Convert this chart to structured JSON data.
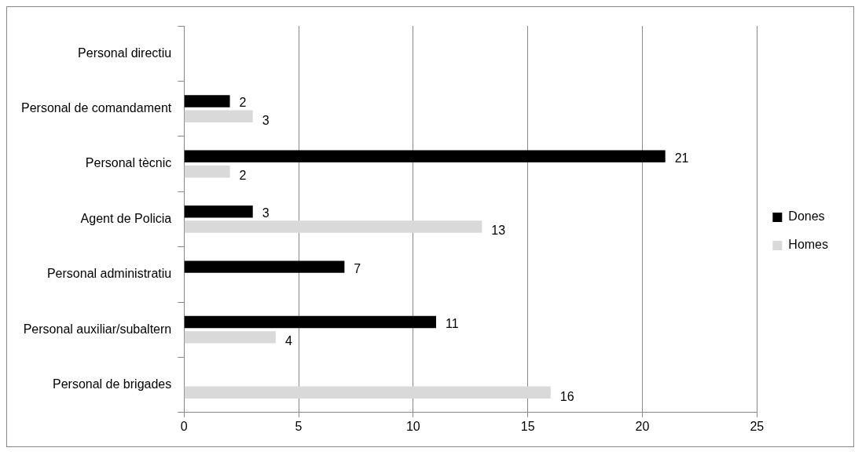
{
  "chart_data": {
    "type": "bar",
    "orientation": "horizontal",
    "categories": [
      "Personal directiu",
      "Personal de comandament",
      "Personal tècnic",
      "Agent de Policia",
      "Personal administratiu",
      "Personal auxiliar/subaltern",
      "Personal de brigades"
    ],
    "series": [
      {
        "name": "Dones",
        "color": "#000000",
        "values": [
          null,
          2,
          21,
          3,
          7,
          11,
          null
        ]
      },
      {
        "name": "Homes",
        "color": "#d9d9d9",
        "values": [
          null,
          3,
          2,
          13,
          null,
          4,
          16
        ]
      }
    ],
    "xlim": [
      0,
      25
    ],
    "xticks": [
      0,
      5,
      10,
      15,
      20,
      25
    ],
    "grid": "x",
    "legend": "right",
    "data_labels": true
  }
}
